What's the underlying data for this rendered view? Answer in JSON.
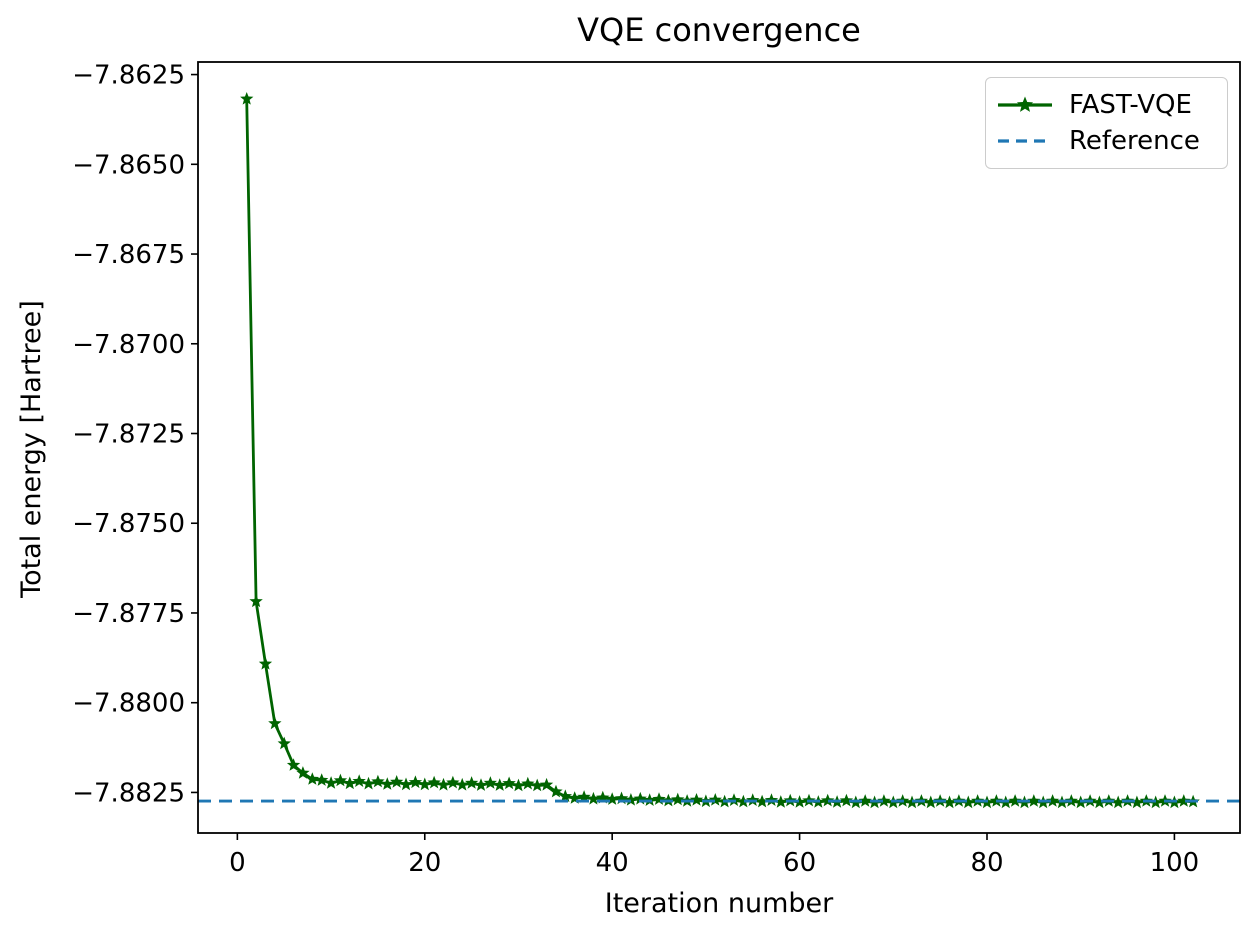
{
  "chart_data": {
    "type": "line",
    "title": "VQE convergence",
    "xlabel": "Iteration number",
    "ylabel": "Total energy [Hartree]",
    "xlim": [
      -4.2,
      107.0
    ],
    "ylim": [
      -7.88363,
      -7.86215
    ],
    "x_ticks": [
      0,
      20,
      40,
      60,
      80,
      100
    ],
    "y_ticks": [
      -7.8625,
      -7.865,
      -7.8675,
      -7.87,
      -7.8725,
      -7.875,
      -7.8775,
      -7.88,
      -7.8825
    ],
    "y_tick_decimals": 4,
    "grid": false,
    "legend_position": "upper right",
    "axis_color": "#000000",
    "series": [
      {
        "name": "FAST-VQE",
        "style": "solid-line-star-markers",
        "color": "#006400",
        "x_start": 1,
        "x_step": 1,
        "values": [
          -7.86318,
          -7.87718,
          -7.87892,
          -7.88058,
          -7.88114,
          -7.88174,
          -7.88196,
          -7.88213,
          -7.88216,
          -7.88224,
          -7.88217,
          -7.88225,
          -7.88219,
          -7.88226,
          -7.8822,
          -7.88227,
          -7.88221,
          -7.88228,
          -7.88222,
          -7.88228,
          -7.88223,
          -7.88229,
          -7.88223,
          -7.88229,
          -7.88224,
          -7.8823,
          -7.88224,
          -7.8823,
          -7.88225,
          -7.88231,
          -7.88226,
          -7.88231,
          -7.88229,
          -7.88248,
          -7.88261,
          -7.88266,
          -7.88263,
          -7.88268,
          -7.88265,
          -7.88269,
          -7.88267,
          -7.88271,
          -7.88268,
          -7.88272,
          -7.88269,
          -7.88273,
          -7.8827,
          -7.88274,
          -7.88271,
          -7.88275,
          -7.88271,
          -7.88276,
          -7.88272,
          -7.88276,
          -7.88272,
          -7.88276,
          -7.88272,
          -7.88277,
          -7.88273,
          -7.88277,
          -7.88273,
          -7.88277,
          -7.88273,
          -7.88277,
          -7.88273,
          -7.88278,
          -7.88274,
          -7.88278,
          -7.88274,
          -7.88278,
          -7.88274,
          -7.88278,
          -7.88274,
          -7.88278,
          -7.88274,
          -7.88278,
          -7.88274,
          -7.88278,
          -7.88274,
          -7.88278,
          -7.88274,
          -7.88278,
          -7.88274,
          -7.88278,
          -7.88274,
          -7.88278,
          -7.88274,
          -7.88278,
          -7.88274,
          -7.88278,
          -7.88274,
          -7.88278,
          -7.88274,
          -7.88278,
          -7.88274,
          -7.88278,
          -7.88274,
          -7.88278,
          -7.88274,
          -7.88278,
          -7.88274,
          -7.88276
        ]
      },
      {
        "name": "Reference",
        "style": "dashed-horizontal-line",
        "color": "#1f77b4",
        "value": -7.88274
      }
    ]
  }
}
